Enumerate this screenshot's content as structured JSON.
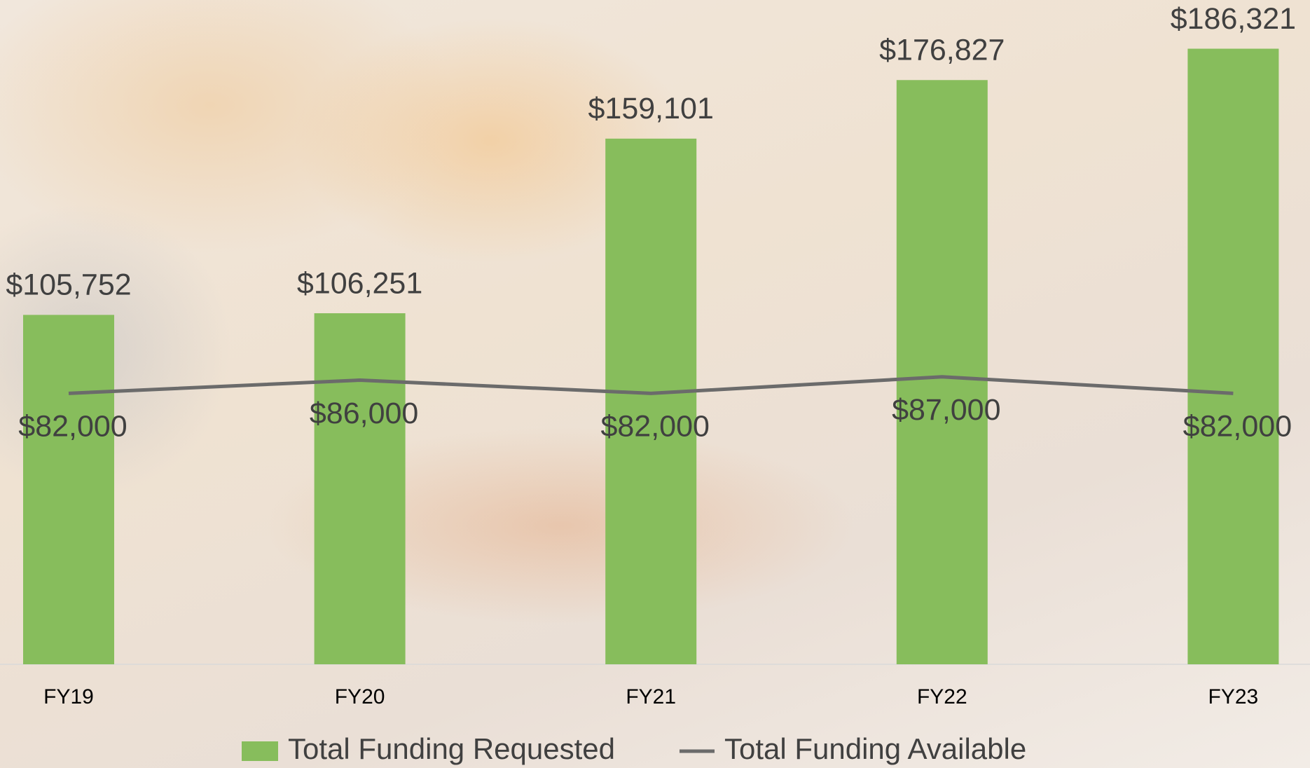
{
  "chart_data": {
    "type": "combo",
    "categories": [
      "FY19",
      "FY20",
      "FY21",
      "FY22",
      "FY23"
    ],
    "series": [
      {
        "name": "Total Funding Requested",
        "type": "bar",
        "color": "#87bd5c",
        "values": [
          105752,
          106251,
          159101,
          176827,
          186321
        ],
        "value_labels": [
          "$105,752",
          "$106,251",
          "$159,101",
          "$176,827",
          "$186,321"
        ]
      },
      {
        "name": "Total Funding Available",
        "type": "line",
        "color": "#6b6b6b",
        "values": [
          82000,
          86000,
          82000,
          87000,
          82000
        ],
        "value_labels": [
          "$82,000",
          "$86,000",
          "$82,000",
          "$87,000",
          "$82,000"
        ]
      }
    ],
    "ylim": [
      0,
      200000
    ],
    "legend": "bottom"
  }
}
